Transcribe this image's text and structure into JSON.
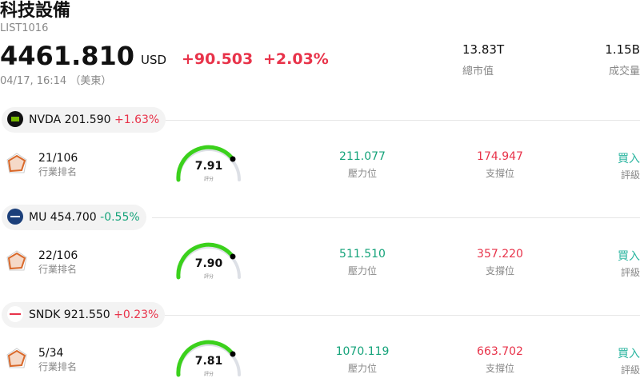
{
  "header": {
    "title": "科技設備",
    "code": "LIST1016",
    "price": "4461.810",
    "currency": "USD",
    "change": "+90.503",
    "change_pct": "+2.03%",
    "time": "04/17, 16:14 （美東）",
    "stats": [
      {
        "value": "13.83T",
        "label": "總市值"
      },
      {
        "value": "1.15B",
        "label": "成交量"
      }
    ]
  },
  "stocks": [
    {
      "ticker": "NVDA",
      "price": "201.590",
      "change": "+1.63%",
      "rank": "21/106",
      "rank_label": "行業排名",
      "score": "7.91",
      "score_label": "評分",
      "resistance": "211.077",
      "resistance_label": "壓力位",
      "support": "174.947",
      "support_label": "支撐位",
      "rating": "買入",
      "rating_label": "評級"
    },
    {
      "ticker": "MU",
      "price": "454.700",
      "change": "-0.55%",
      "rank": "22/106",
      "rank_label": "行業排名",
      "score": "7.90",
      "score_label": "評分",
      "resistance": "511.510",
      "resistance_label": "壓力位",
      "support": "357.220",
      "support_label": "支撐位",
      "rating": "買入",
      "rating_label": "評級"
    },
    {
      "ticker": "SNDK",
      "price": "921.550",
      "change": "+0.23%",
      "rank": "5/34",
      "rank_label": "行業排名",
      "score": "7.81",
      "score_label": "評分",
      "resistance": "1070.119",
      "resistance_label": "壓力位",
      "support": "663.702",
      "support_label": "支撐位",
      "rating": "買入",
      "rating_label": "評級"
    }
  ]
}
